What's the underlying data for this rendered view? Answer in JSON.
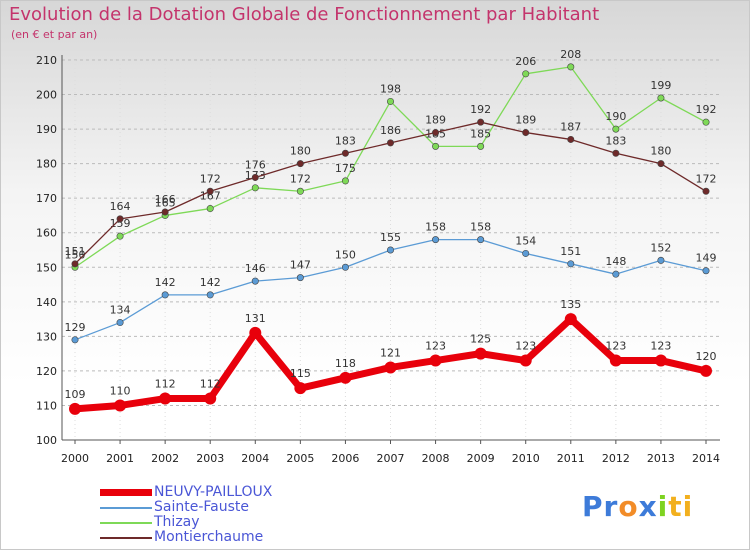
{
  "chart_data": {
    "type": "line",
    "title": "Evolution de la Dotation Globale de Fonctionnement par Habitant",
    "subtitle": "(en € et par an)",
    "x": [
      2000,
      2001,
      2002,
      2003,
      2004,
      2005,
      2006,
      2007,
      2008,
      2009,
      2010,
      2011,
      2012,
      2013,
      2014
    ],
    "yticks": [
      100,
      110,
      120,
      130,
      140,
      150,
      160,
      170,
      180,
      190,
      200,
      210
    ],
    "ylim": [
      100,
      210
    ],
    "grid": "horizontal-dashed",
    "legend": "bottom-left",
    "series": [
      {
        "name": "NEUVY-PAILLOUX",
        "color": "#e8000b",
        "values": [
          109,
          110,
          112,
          112,
          131,
          115,
          118,
          121,
          123,
          125,
          123,
          135,
          123,
          123,
          120
        ]
      },
      {
        "name": "Sainte-Fauste",
        "color": "#5b9bd5",
        "values": [
          129,
          134,
          142,
          142,
          146,
          147,
          150,
          155,
          158,
          158,
          154,
          151,
          148,
          152,
          149
        ]
      },
      {
        "name": "Thizay",
        "color": "#7ed957",
        "values": [
          150,
          159,
          165,
          167,
          173,
          172,
          175,
          198,
          185,
          185,
          206,
          208,
          190,
          199,
          192
        ]
      },
      {
        "name": "Montierchaume",
        "color": "#6e2a2a",
        "values": [
          151,
          164,
          166,
          172,
          176,
          180,
          183,
          186,
          189,
          192,
          189,
          187,
          183,
          180,
          172
        ]
      }
    ]
  },
  "logo": {
    "parts": [
      "Pr",
      "o",
      "x",
      "i",
      "ti"
    ],
    "colors": [
      "#3d7bd9",
      "#f28c28",
      "#3d7bd9",
      "#7ed321",
      "#f2b01e"
    ]
  }
}
